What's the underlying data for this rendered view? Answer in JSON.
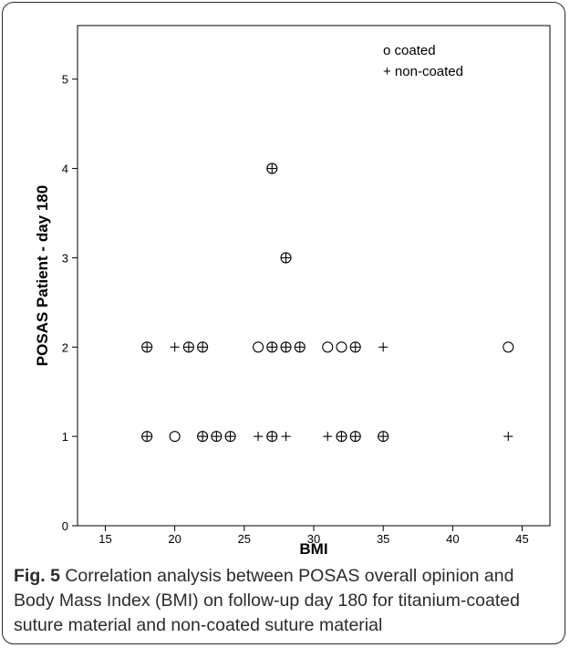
{
  "caption": {
    "label": "Fig. 5",
    "text": " Correlation analysis between POSAS overall opinion and Body Mass Index (BMI) on follow-up day 180 for titanium-coated suture material and non-coated suture material"
  },
  "chart_data": {
    "type": "scatter",
    "title": "",
    "xlabel": "BMI",
    "ylabel": "POSAS Patient - day 180",
    "xlim": [
      13,
      47
    ],
    "ylim": [
      0,
      5.6
    ],
    "xticks": [
      15,
      20,
      25,
      30,
      35,
      40,
      45
    ],
    "yticks": [
      0,
      1,
      2,
      3,
      4,
      5
    ],
    "grid": false,
    "legend": {
      "position": "top-right",
      "entries": [
        "o coated",
        "+ non-coated"
      ]
    },
    "series": [
      {
        "name": "coated",
        "marker": "circle",
        "points": [
          [
            18,
            2
          ],
          [
            21,
            2
          ],
          [
            22,
            2
          ],
          [
            26,
            2
          ],
          [
            27,
            2
          ],
          [
            28,
            2
          ],
          [
            29,
            2
          ],
          [
            31,
            2
          ],
          [
            32,
            2
          ],
          [
            33,
            2
          ],
          [
            44,
            2
          ],
          [
            18,
            1
          ],
          [
            20,
            1
          ],
          [
            22,
            1
          ],
          [
            23,
            1
          ],
          [
            24,
            1
          ],
          [
            27,
            1
          ],
          [
            32,
            1
          ],
          [
            33,
            1
          ],
          [
            35,
            1
          ],
          [
            27,
            4
          ],
          [
            28,
            3
          ]
        ]
      },
      {
        "name": "non-coated",
        "marker": "plus",
        "points": [
          [
            18,
            2
          ],
          [
            20,
            2
          ],
          [
            21,
            2
          ],
          [
            22,
            2
          ],
          [
            27,
            2
          ],
          [
            28,
            2
          ],
          [
            29,
            2
          ],
          [
            33,
            2
          ],
          [
            35,
            2
          ],
          [
            18,
            1
          ],
          [
            22,
            1
          ],
          [
            23,
            1
          ],
          [
            24,
            1
          ],
          [
            26,
            1
          ],
          [
            27,
            1
          ],
          [
            28,
            1
          ],
          [
            31,
            1
          ],
          [
            32,
            1
          ],
          [
            33,
            1
          ],
          [
            35,
            1
          ],
          [
            44,
            1
          ],
          [
            27,
            4
          ],
          [
            28,
            3
          ]
        ]
      }
    ]
  }
}
